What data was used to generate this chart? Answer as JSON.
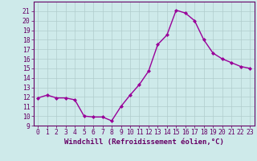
{
  "x": [
    0,
    1,
    2,
    3,
    4,
    5,
    6,
    7,
    8,
    9,
    10,
    11,
    12,
    13,
    14,
    15,
    16,
    17,
    18,
    19,
    20,
    21,
    22,
    23
  ],
  "y": [
    11.9,
    12.2,
    11.9,
    11.9,
    11.7,
    10.0,
    9.9,
    9.9,
    9.5,
    11.0,
    12.2,
    13.3,
    14.7,
    17.5,
    18.5,
    21.1,
    20.8,
    20.0,
    18.0,
    16.6,
    16.0,
    15.6,
    15.2,
    15.0
  ],
  "line_color": "#990099",
  "marker": "D",
  "marker_size": 2.0,
  "xlabel": "Windchill (Refroidissement éolien,°C)",
  "xlabel_fontsize": 6.5,
  "ylim": [
    9,
    22
  ],
  "xlim": [
    -0.5,
    23.5
  ],
  "yticks": [
    9,
    10,
    11,
    12,
    13,
    14,
    15,
    16,
    17,
    18,
    19,
    20,
    21
  ],
  "xticks": [
    0,
    1,
    2,
    3,
    4,
    5,
    6,
    7,
    8,
    9,
    10,
    11,
    12,
    13,
    14,
    15,
    16,
    17,
    18,
    19,
    20,
    21,
    22,
    23
  ],
  "background_color": "#ceeaea",
  "grid_color": "#b0cccc",
  "tick_fontsize": 5.8,
  "line_width": 1.0,
  "spine_color": "#660066",
  "tick_color": "#660066"
}
